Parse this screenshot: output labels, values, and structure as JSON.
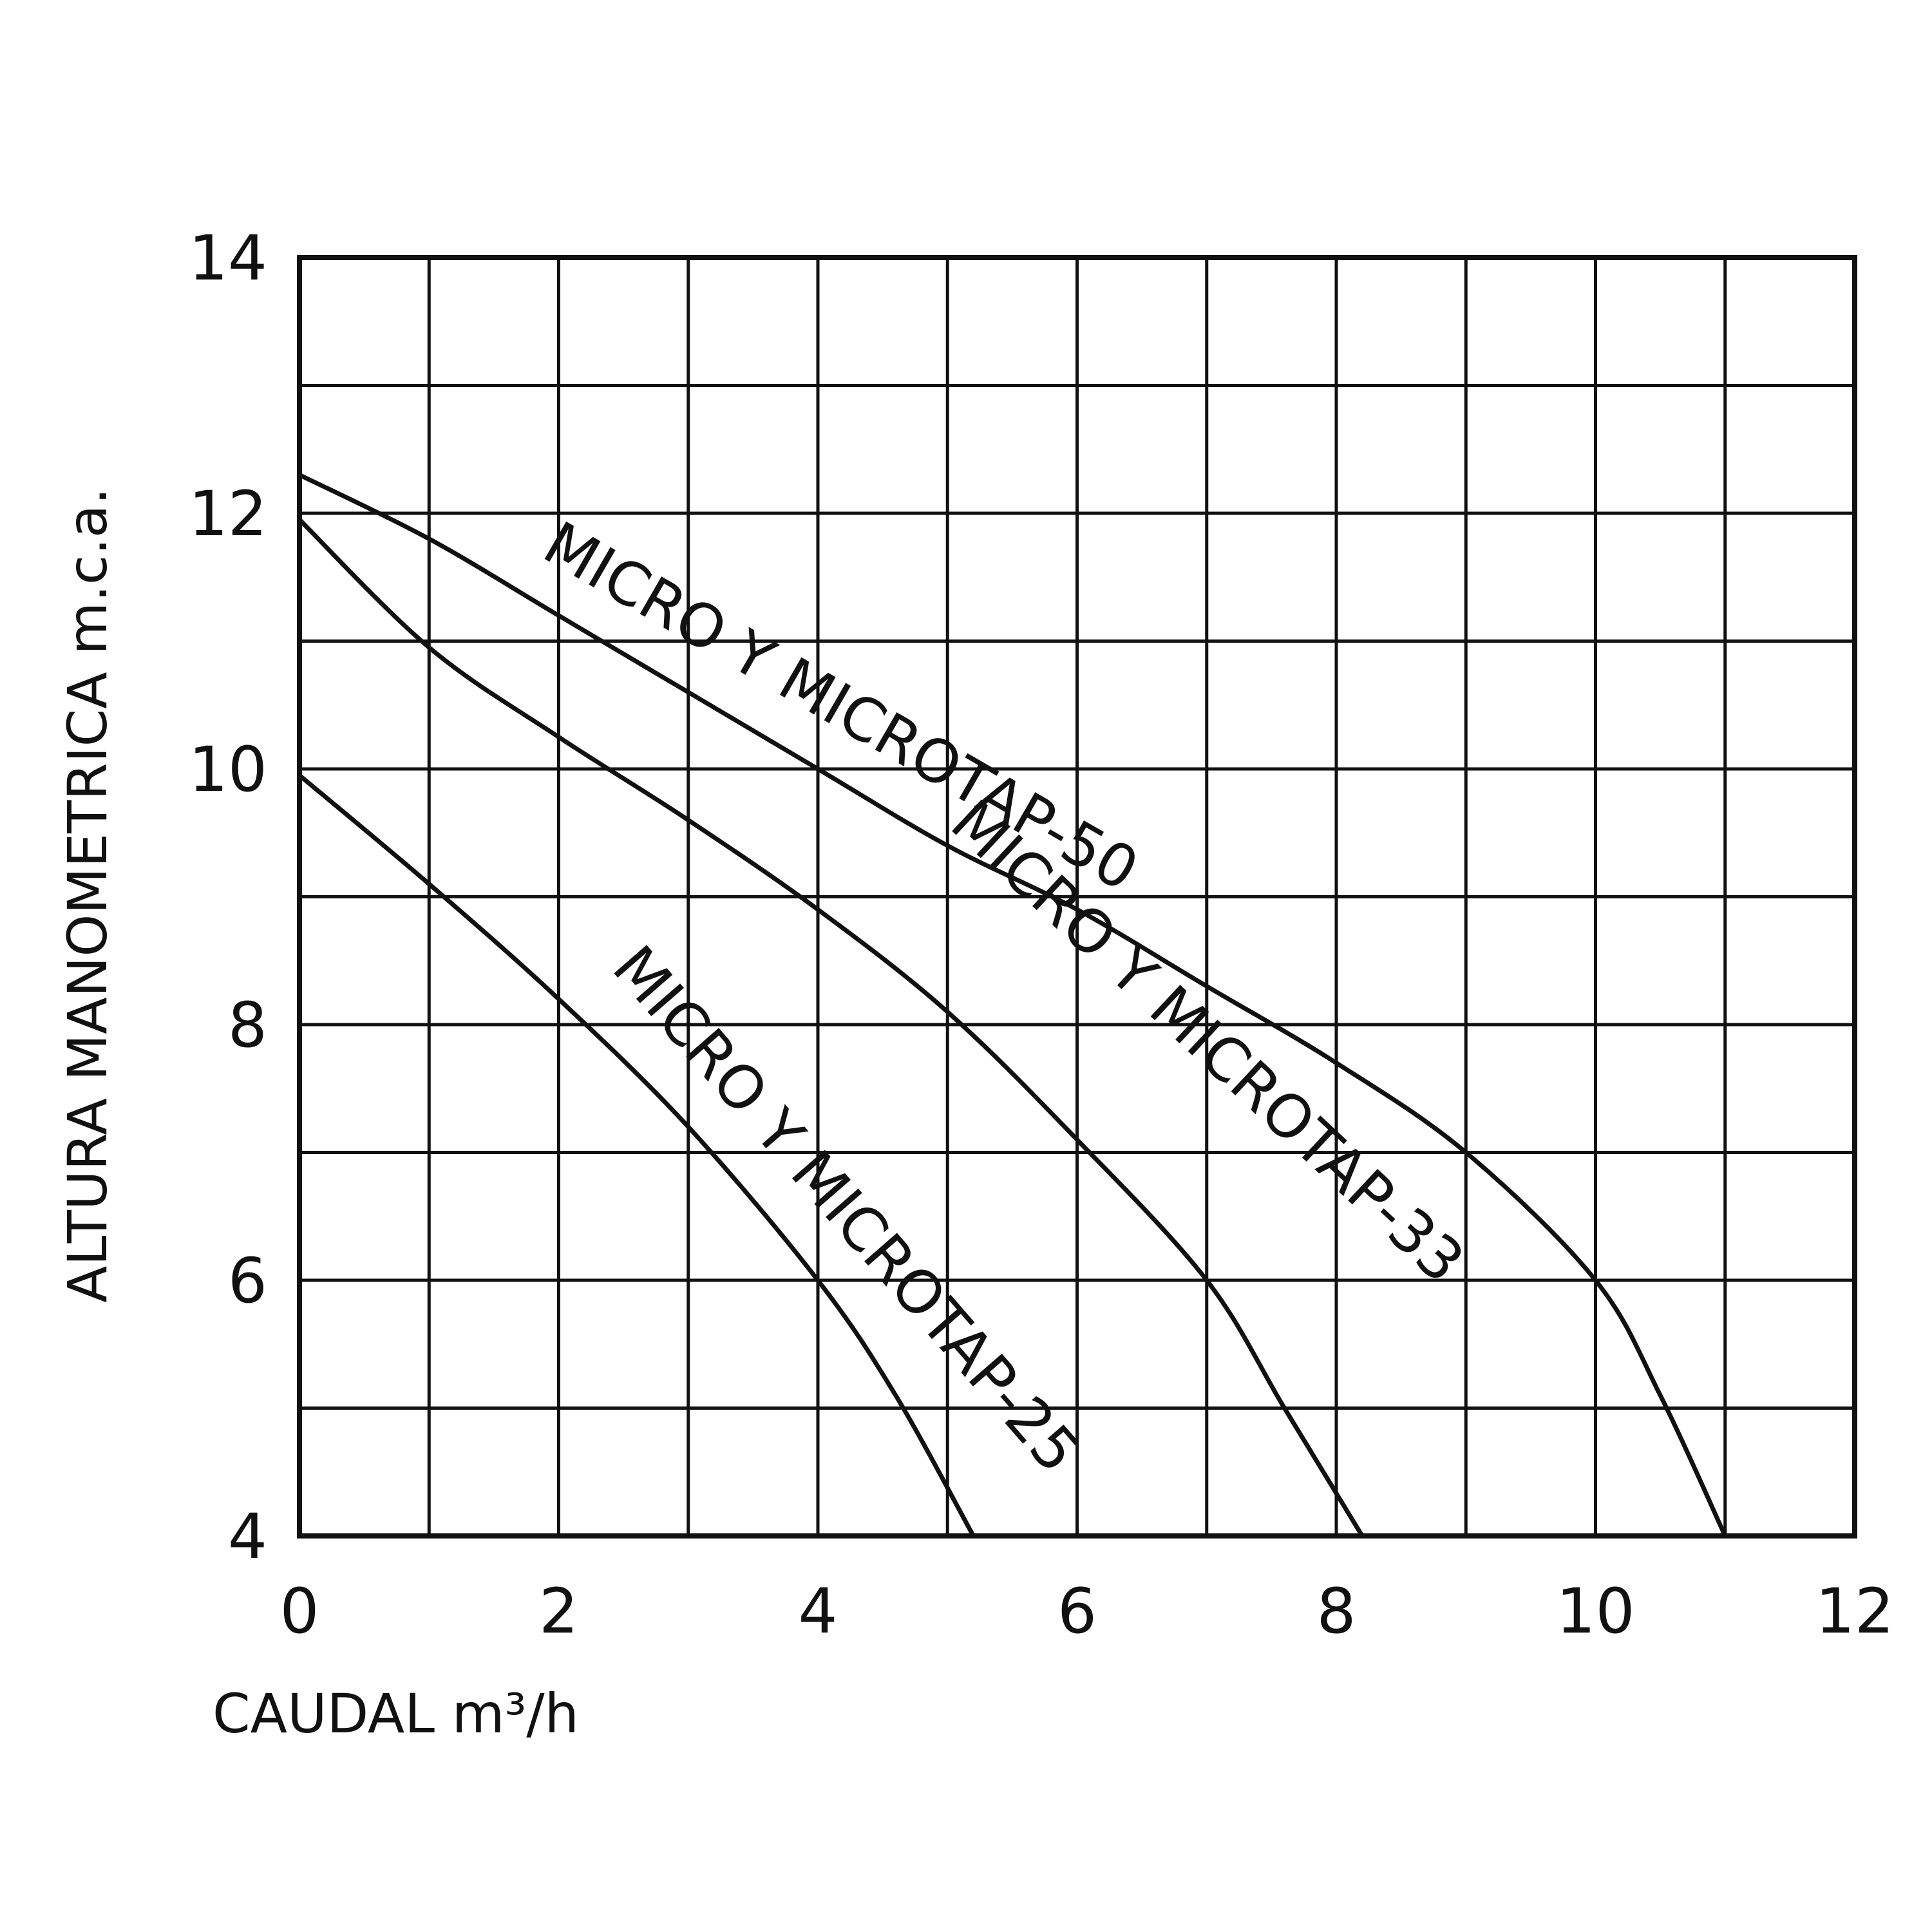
{
  "chart_data": {
    "type": "line",
    "title": "",
    "xlabel": "CAUDAL m³/h",
    "ylabel": "ALTURA MANOMETRICA m.c.a.",
    "xlim": [
      0,
      12
    ],
    "ylim": [
      4,
      14
    ],
    "xticks": [
      0,
      2,
      4,
      6,
      8,
      10,
      12
    ],
    "yticks": [
      4,
      6,
      8,
      10,
      12,
      14
    ],
    "grid": true,
    "grid_step_x": 1,
    "grid_step_y": 1,
    "series": [
      {
        "name": "MICRO Y MICROTAP-50",
        "x": [
          0,
          1,
          2,
          3,
          4,
          5,
          6,
          7,
          8,
          9,
          10,
          10.5,
          11
        ],
        "y": [
          12.3,
          11.8,
          11.2,
          10.6,
          10.0,
          9.4,
          8.9,
          8.3,
          7.7,
          7.0,
          6.0,
          5.1,
          4.0
        ]
      },
      {
        "name": "MICRO Y MICROTAP-33",
        "x": [
          0,
          1,
          2,
          3,
          4,
          5,
          6,
          7,
          7.6,
          8.2
        ],
        "y": [
          11.95,
          10.95,
          10.25,
          9.6,
          8.9,
          8.1,
          7.1,
          6.0,
          5.0,
          4.0
        ]
      },
      {
        "name": "MICRO Y MICROTAP-25",
        "x": [
          0,
          1,
          2,
          3,
          4,
          4.6,
          5.2
        ],
        "y": [
          9.95,
          9.1,
          8.2,
          7.2,
          6.0,
          5.1,
          4.0
        ]
      }
    ]
  }
}
